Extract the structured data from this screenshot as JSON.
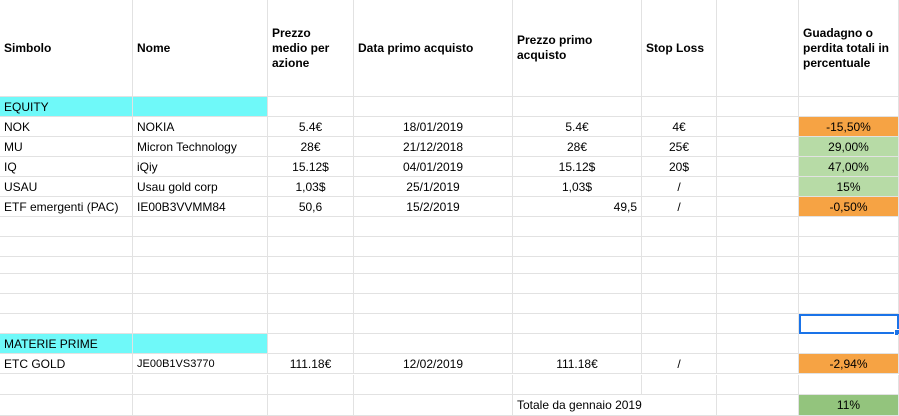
{
  "headers": {
    "simbolo": "Simbolo",
    "nome": "Nome",
    "prezzo_medio": "Prezzo medio per azione",
    "data_primo": "Data primo acquisto",
    "prezzo_primo": "Prezzo primo acquisto",
    "stop_loss": "Stop Loss",
    "guadagno": "Guadagno o perdita totali in percentuale"
  },
  "sections": {
    "equity": "EQUITY",
    "materie_prime": "MATERIE PRIME"
  },
  "equity_rows": [
    {
      "simbolo": "NOK",
      "nome": "NOKIA",
      "prezzo_medio": "5.4€",
      "data": "18/01/2019",
      "prezzo_primo": "5.4€",
      "stop": "4€",
      "pct": "-15,50%",
      "status": "loss"
    },
    {
      "simbolo": "MU",
      "nome": "Micron Technology",
      "prezzo_medio": "28€",
      "data": "21/12/2018",
      "prezzo_primo": "28€",
      "stop": "25€",
      "pct": "29,00%",
      "status": "gain"
    },
    {
      "simbolo": "IQ",
      "nome": "iQiy",
      "prezzo_medio": "15.12$",
      "data": "04/01/2019",
      "prezzo_primo": "15.12$",
      "stop": "20$",
      "pct": "47,00%",
      "status": "gain"
    },
    {
      "simbolo": "USAU",
      "nome": "Usau gold corp",
      "prezzo_medio": "1,03$",
      "data": "25/1/2019",
      "prezzo_primo": "1,03$",
      "stop": "/",
      "pct": "15%",
      "status": "gain"
    },
    {
      "simbolo": "ETF emergenti (PAC)",
      "nome": "IE00B3VVMM84",
      "prezzo_medio": "50,6",
      "data": "15/2/2019",
      "prezzo_primo": "49,5",
      "stop": "/",
      "pct": "-0,50%",
      "status": "loss"
    }
  ],
  "materie_rows": [
    {
      "simbolo": "ETC GOLD",
      "nome": "JE00B1VS3770",
      "prezzo_medio": "111.18€",
      "data": "12/02/2019",
      "prezzo_primo": "111.18€",
      "stop": "/",
      "pct": "-2,94%",
      "status": "loss"
    }
  ],
  "totale": {
    "label": "Totale da gennaio 2019",
    "value": "11%"
  },
  "colors": {
    "section": "#6ff9f9",
    "loss": "#f6a344",
    "gain": "#b7dba6",
    "total": "#93c47d",
    "selection": "#1a73e8"
  }
}
